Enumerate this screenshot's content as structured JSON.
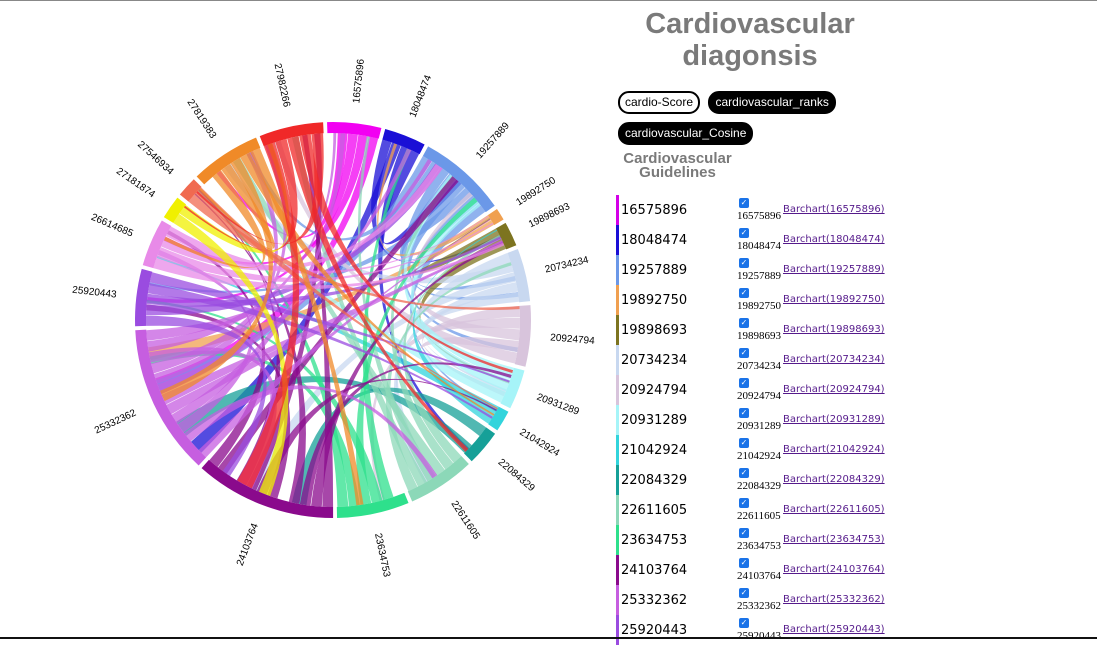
{
  "header": {
    "title": "Cardiovascular diagonsis",
    "subtitle": "Cardiovascular Guidelines"
  },
  "tabs": [
    {
      "label": "cardio-Score",
      "active": true
    },
    {
      "label": "cardiovascular_ranks",
      "active": false
    },
    {
      "label": "cardiovascular_Cosine",
      "active": false
    }
  ],
  "guidelines": [
    {
      "id": "16575896",
      "checked": true,
      "link": "Barchart(16575896)",
      "color": "#d400e8"
    },
    {
      "id": "18048474",
      "checked": true,
      "link": "Barchart(18048474)",
      "color": "#1a0fd6"
    },
    {
      "id": "19257889",
      "checked": true,
      "link": "Barchart(19257889)",
      "color": "#6b98e8"
    },
    {
      "id": "19892750",
      "checked": true,
      "link": "Barchart(19892750)",
      "color": "#f0a050"
    },
    {
      "id": "19898693",
      "checked": true,
      "link": "Barchart(19898693)",
      "color": "#7d7420"
    },
    {
      "id": "20734234",
      "checked": true,
      "link": "Barchart(20734234)",
      "color": "#c8d8f0"
    },
    {
      "id": "20924794",
      "checked": true,
      "link": "Barchart(20924794)",
      "color": "#d8c4dc"
    },
    {
      "id": "20931289",
      "checked": true,
      "link": "Barchart(20931289)",
      "color": "#a6f4f8"
    },
    {
      "id": "21042924",
      "checked": true,
      "link": "Barchart(21042924)",
      "color": "#32d4dc"
    },
    {
      "id": "22084329",
      "checked": true,
      "link": "Barchart(22084329)",
      "color": "#16a098"
    },
    {
      "id": "22611605",
      "checked": true,
      "link": "Barchart(22611605)",
      "color": "#8cd8b8"
    },
    {
      "id": "23634753",
      "checked": true,
      "link": "Barchart(23634753)",
      "color": "#2ee08c"
    },
    {
      "id": "24103764",
      "checked": true,
      "link": "Barchart(24103764)",
      "color": "#8a0a8c"
    },
    {
      "id": "25332362",
      "checked": true,
      "link": "Barchart(25332362)",
      "color": "#c65ee0"
    },
    {
      "id": "25920443",
      "checked": true,
      "link": "Barchart(25920443)",
      "color": "#9a4ce0"
    }
  ],
  "chart_data": {
    "type": "chord",
    "groups": [
      {
        "name": "16575896",
        "value": 5.3,
        "color": "#f200f2"
      },
      {
        "name": "18048474",
        "value": 4.1,
        "color": "#1a0fd6"
      },
      {
        "name": "19257889",
        "value": 8.7,
        "color": "#6b98e8"
      },
      {
        "name": "19892750",
        "value": 1.2,
        "color": "#f0a050"
      },
      {
        "name": "19898693",
        "value": 2.4,
        "color": "#7d7420"
      },
      {
        "name": "20734234",
        "value": 5.2,
        "color": "#c8d8f0"
      },
      {
        "name": "20924794",
        "value": 6.0,
        "color": "#d8c4dc"
      },
      {
        "name": "20931289",
        "value": 3.9,
        "color": "#a6f4f8"
      },
      {
        "name": "21042924",
        "value": 2.1,
        "color": "#32d4dc"
      },
      {
        "name": "22084329",
        "value": 3.5,
        "color": "#16a098"
      },
      {
        "name": "22611605",
        "value": 6.6,
        "color": "#8cd8b8"
      },
      {
        "name": "23634753",
        "value": 7.1,
        "color": "#2ee08c"
      },
      {
        "name": "24103764",
        "value": 13.9,
        "color": "#8a0a8c"
      },
      {
        "name": "25332362",
        "value": 14.8,
        "color": "#c65ee0"
      },
      {
        "name": "25920443",
        "value": 5.6,
        "color": "#9a4ce0"
      },
      {
        "name": "26614685",
        "value": 4.7,
        "color": "#e88ae8"
      },
      {
        "name": "27181874",
        "value": 2.3,
        "color": "#f0f000"
      },
      {
        "name": "27546934",
        "value": 2.0,
        "color": "#f06a50"
      },
      {
        "name": "27819383",
        "value": 6.9,
        "color": "#f08a28"
      },
      {
        "name": "27982266",
        "value": 6.3,
        "color": "#f02828"
      }
    ]
  }
}
